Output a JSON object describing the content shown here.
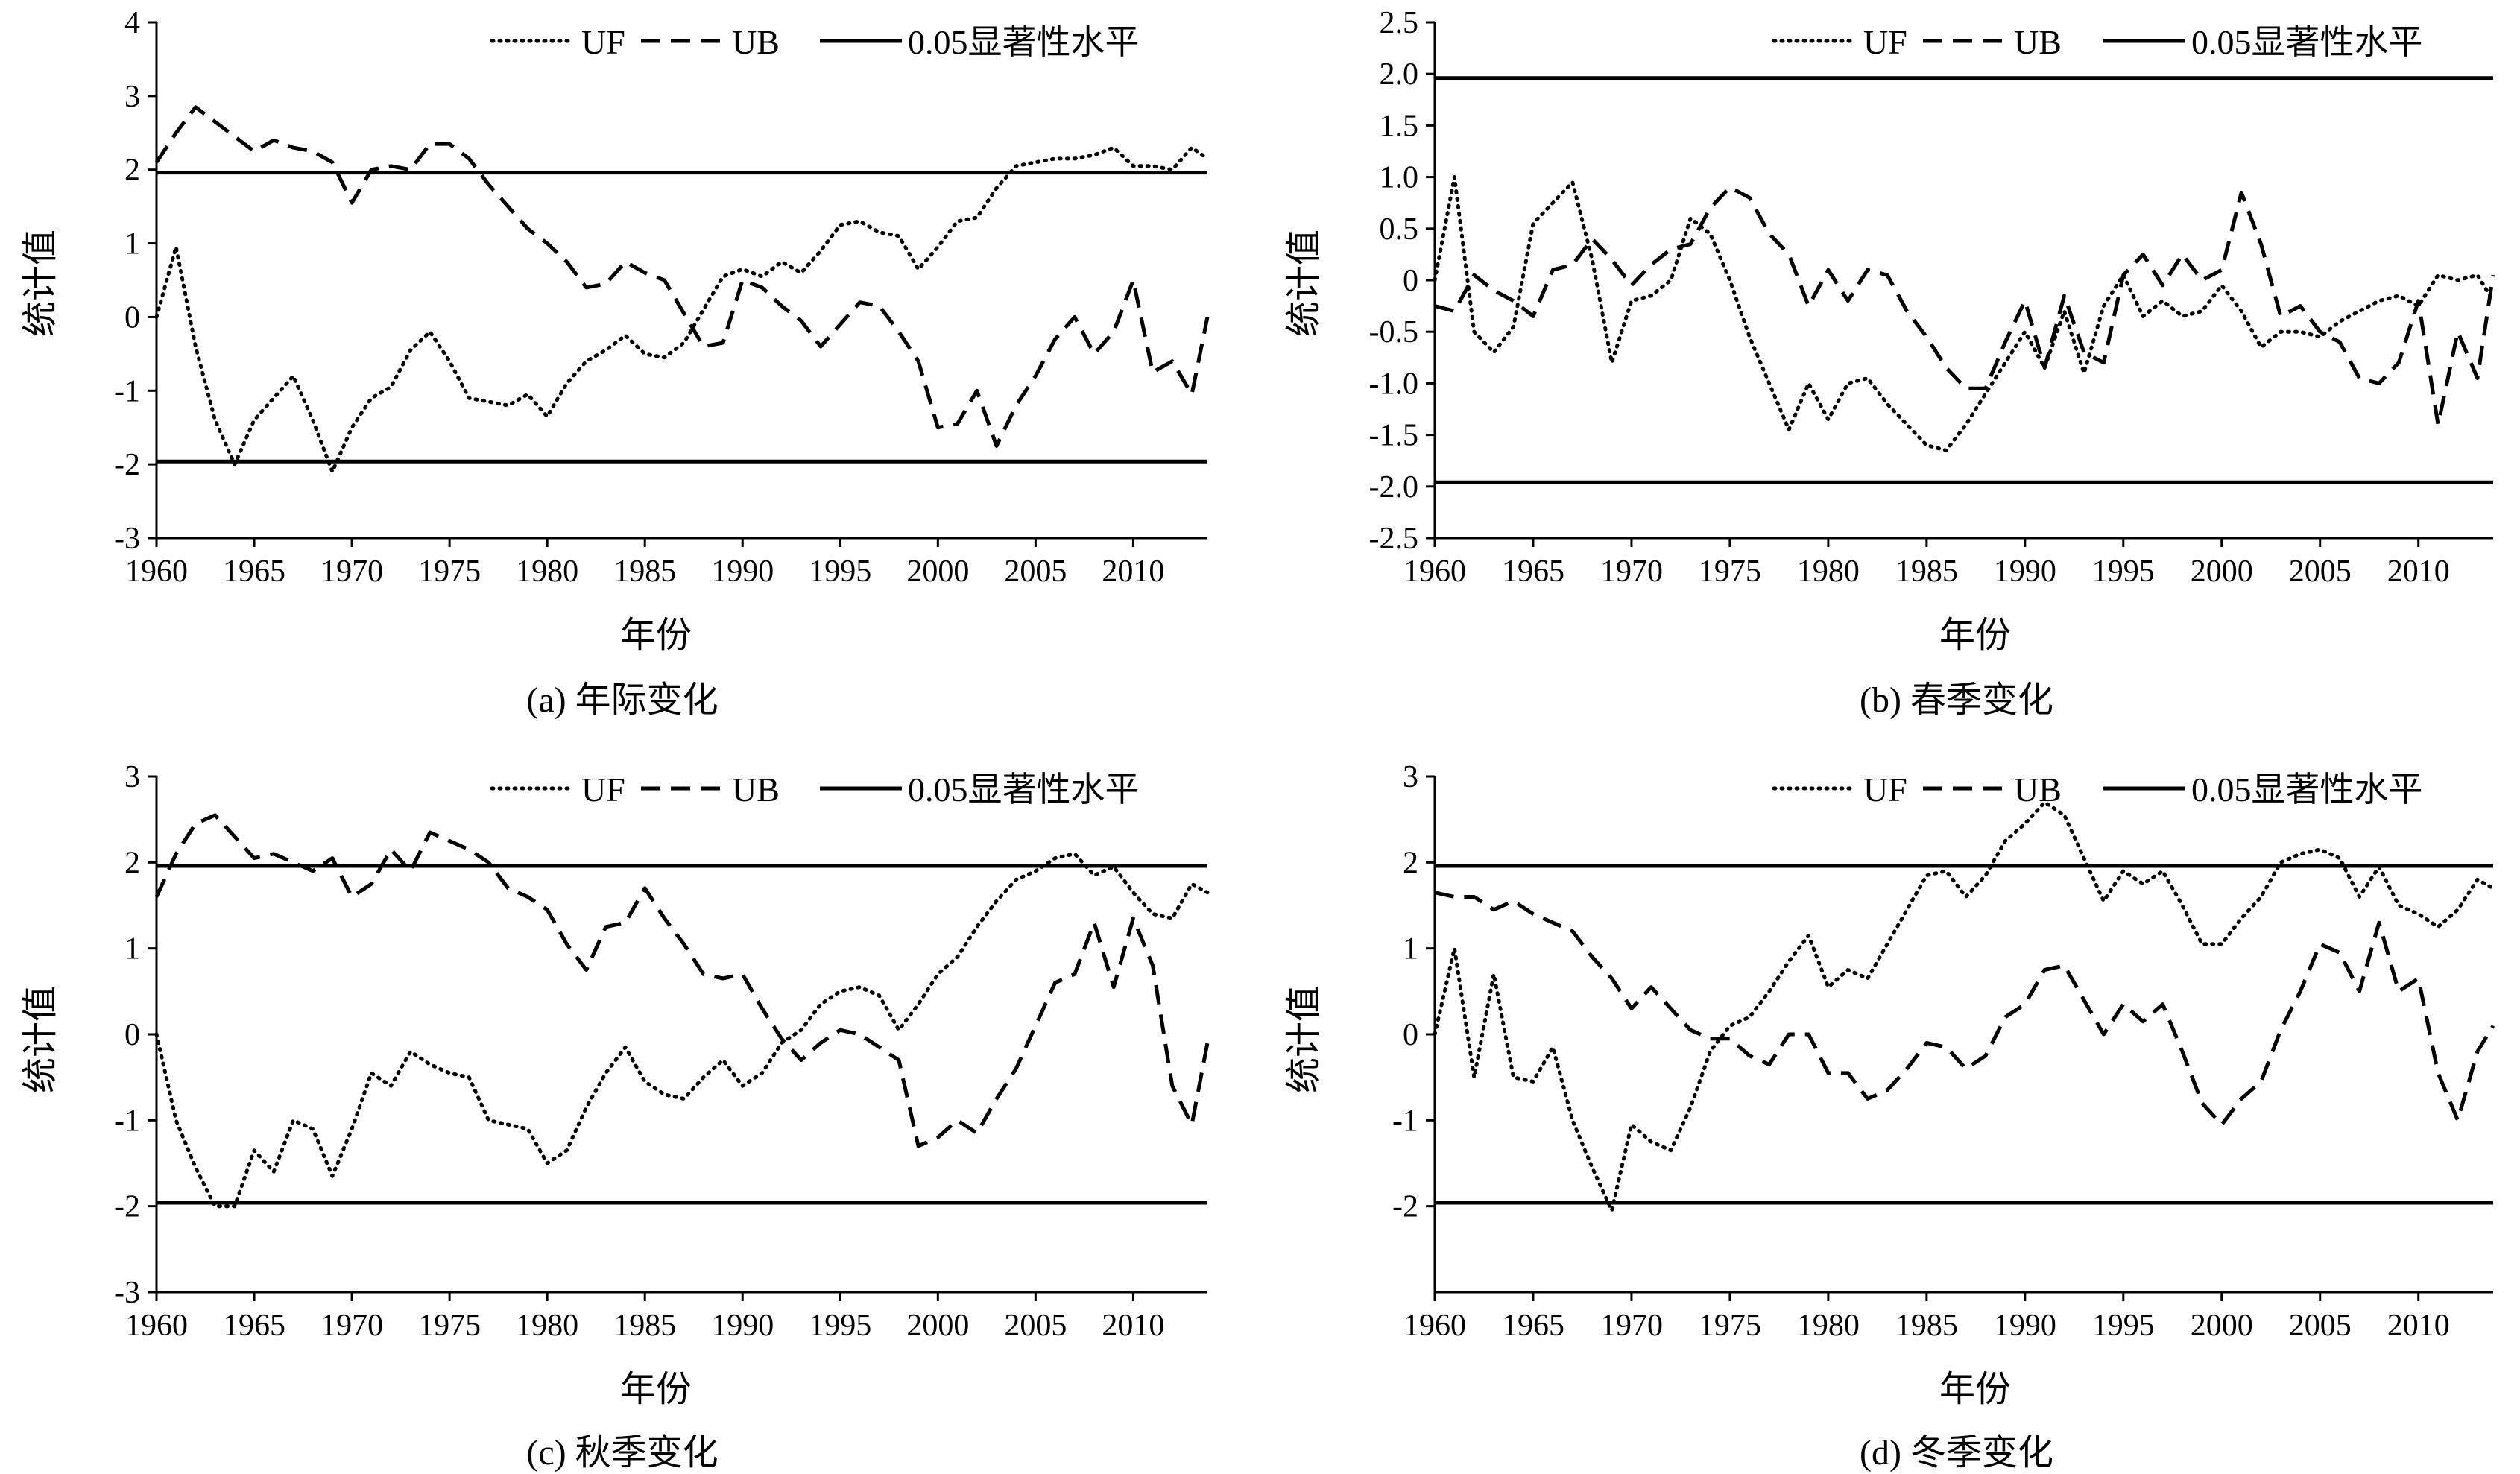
{
  "legend": {
    "uf": "UF",
    "ub": "UB",
    "sig": "0.05显著性水平"
  },
  "chart_data": [
    {
      "type": "line",
      "caption": "(a) 年际变化",
      "xlabel": "年份",
      "ylabel": "统计值",
      "xticks": [
        1960,
        1965,
        1970,
        1975,
        1980,
        1985,
        1990,
        1995,
        2000,
        2005,
        2010
      ],
      "yticks": [
        "4",
        "3",
        "2",
        "1",
        "0",
        "-1",
        "-2",
        "-3"
      ],
      "ylim": [
        -3,
        4
      ],
      "xlim": [
        1960,
        2013.8
      ],
      "sig": [
        1.96,
        -1.96
      ],
      "series": [
        {
          "name": "UF",
          "x": [
            1960,
            1961,
            1962,
            1963,
            1964,
            1965,
            1966,
            1967,
            1968,
            1969,
            1970,
            1971,
            1972,
            1973,
            1974,
            1975,
            1976,
            1977,
            1978,
            1979,
            1980,
            1981,
            1982,
            1983,
            1984,
            1985,
            1986,
            1987,
            1988,
            1989,
            1990,
            1991,
            1992,
            1993,
            1994,
            1995,
            1996,
            1997,
            1998,
            1999,
            2000,
            2001,
            2002,
            2003,
            2004,
            2005,
            2006,
            2007,
            2008,
            2009,
            2010,
            2011,
            2012,
            2013,
            2013.8
          ],
          "values": [
            0,
            0.95,
            -0.4,
            -1.4,
            -2.0,
            -1.4,
            -1.1,
            -0.8,
            -1.4,
            -2.1,
            -1.5,
            -1.1,
            -0.95,
            -0.45,
            -0.2,
            -0.6,
            -1.1,
            -1.15,
            -1.2,
            -1.05,
            -1.35,
            -0.9,
            -0.6,
            -0.45,
            -0.25,
            -0.5,
            -0.55,
            -0.35,
            0.1,
            0.55,
            0.65,
            0.55,
            0.75,
            0.6,
            0.9,
            1.25,
            1.3,
            1.15,
            1.1,
            0.65,
            0.95,
            1.3,
            1.35,
            1.75,
            2.05,
            2.1,
            2.15,
            2.15,
            2.2,
            2.3,
            2.05,
            2.05,
            2.0,
            2.3,
            2.15
          ]
        },
        {
          "name": "UB",
          "x": [
            1960,
            1961,
            1962,
            1963,
            1964,
            1965,
            1966,
            1967,
            1968,
            1969,
            1970,
            1971,
            1972,
            1973,
            1974,
            1975,
            1976,
            1977,
            1978,
            1979,
            1980,
            1981,
            1982,
            1983,
            1984,
            1985,
            1986,
            1987,
            1988,
            1989,
            1990,
            1991,
            1992,
            1993,
            1994,
            1995,
            1996,
            1997,
            1998,
            1999,
            2000,
            2001,
            2002,
            2003,
            2004,
            2005,
            2006,
            2007,
            2008,
            2009,
            2010,
            2011,
            2012,
            2013,
            2013.8
          ],
          "values": [
            2.1,
            2.5,
            2.85,
            2.65,
            2.45,
            2.25,
            2.4,
            2.3,
            2.25,
            2.1,
            1.55,
            2.0,
            2.05,
            2.0,
            2.35,
            2.35,
            2.15,
            1.8,
            1.5,
            1.2,
            1.0,
            0.75,
            0.4,
            0.45,
            0.75,
            0.6,
            0.5,
            0.05,
            -0.4,
            -0.35,
            0.5,
            0.4,
            0.15,
            -0.05,
            -0.4,
            -0.1,
            0.2,
            0.15,
            -0.2,
            -0.6,
            -1.5,
            -1.45,
            -1.0,
            -1.75,
            -1.2,
            -0.8,
            -0.3,
            0.0,
            -0.5,
            -0.2,
            0.5,
            -0.75,
            -0.6,
            -1.05,
            0.0
          ]
        }
      ]
    },
    {
      "type": "line",
      "caption": "(b) 春季变化",
      "xlabel": "年份",
      "ylabel": "统计值",
      "xticks": [
        1960,
        1965,
        1970,
        1975,
        1980,
        1985,
        1990,
        1995,
        2000,
        2005,
        2010
      ],
      "yticks": [
        "2.5",
        "2.0",
        "1.5",
        "1.0",
        "0.5",
        "0",
        "-0.5",
        "-1.0",
        "-1.5",
        "-2.0",
        "-2.5"
      ],
      "ylim": [
        -2.5,
        2.5
      ],
      "xlim": [
        1960,
        2013.8
      ],
      "sig": [
        1.96,
        -1.96
      ],
      "series": [
        {
          "name": "UF",
          "x": [
            1960,
            1961,
            1962,
            1963,
            1964,
            1965,
            1966,
            1967,
            1968,
            1969,
            1970,
            1971,
            1972,
            1973,
            1974,
            1975,
            1976,
            1977,
            1978,
            1979,
            1980,
            1981,
            1982,
            1983,
            1984,
            1985,
            1986,
            1987,
            1988,
            1989,
            1990,
            1991,
            1992,
            1993,
            1994,
            1995,
            1996,
            1997,
            1998,
            1999,
            2000,
            2001,
            2002,
            2003,
            2004,
            2005,
            2006,
            2007,
            2008,
            2009,
            2010,
            2011,
            2012,
            2013,
            2013.8
          ],
          "values": [
            0,
            1.0,
            -0.5,
            -0.7,
            -0.45,
            0.55,
            0.75,
            0.95,
            0.2,
            -0.8,
            -0.2,
            -0.15,
            0.0,
            0.6,
            0.45,
            0.0,
            -0.55,
            -1.0,
            -1.45,
            -1.0,
            -1.35,
            -1.0,
            -0.95,
            -1.2,
            -1.4,
            -1.6,
            -1.65,
            -1.4,
            -1.1,
            -0.8,
            -0.5,
            -0.85,
            -0.3,
            -0.9,
            -0.25,
            0.05,
            -0.35,
            -0.2,
            -0.35,
            -0.3,
            -0.05,
            -0.3,
            -0.65,
            -0.5,
            -0.5,
            -0.55,
            -0.4,
            -0.3,
            -0.2,
            -0.15,
            -0.25,
            0.05,
            0.0,
            0.05,
            -0.2
          ]
        },
        {
          "name": "UB",
          "x": [
            1960,
            1961,
            1962,
            1963,
            1964,
            1965,
            1966,
            1967,
            1968,
            1969,
            1970,
            1971,
            1972,
            1973,
            1974,
            1975,
            1976,
            1977,
            1978,
            1979,
            1980,
            1981,
            1982,
            1983,
            1984,
            1985,
            1986,
            1987,
            1988,
            1989,
            1990,
            1991,
            1992,
            1993,
            1994,
            1995,
            1996,
            1997,
            1998,
            1999,
            2000,
            2001,
            2002,
            2003,
            2004,
            2005,
            2006,
            2007,
            2008,
            2009,
            2010,
            2011,
            2012,
            2013,
            2013.8
          ],
          "values": [
            -0.25,
            -0.3,
            0.05,
            -0.1,
            -0.2,
            -0.35,
            0.1,
            0.15,
            0.4,
            0.2,
            -0.05,
            0.15,
            0.3,
            0.35,
            0.7,
            0.9,
            0.8,
            0.45,
            0.25,
            -0.25,
            0.1,
            -0.2,
            0.1,
            0.05,
            -0.3,
            -0.55,
            -0.85,
            -1.05,
            -1.05,
            -0.6,
            -0.2,
            -0.85,
            -0.15,
            -0.7,
            -0.8,
            0.05,
            0.25,
            -0.05,
            0.25,
            0.0,
            0.1,
            0.85,
            0.35,
            -0.35,
            -0.25,
            -0.5,
            -0.6,
            -0.95,
            -1.0,
            -0.8,
            -0.2,
            -1.4,
            -0.5,
            -0.95,
            0.05
          ]
        }
      ]
    },
    {
      "type": "line",
      "caption": "(c) 秋季变化",
      "xlabel": "年份",
      "ylabel": "统计值",
      "xticks": [
        1960,
        1965,
        1970,
        1975,
        1980,
        1985,
        1990,
        1995,
        2000,
        2005,
        2010
      ],
      "yticks": [
        "3",
        "2",
        "1",
        "0",
        "-1",
        "-2",
        "-3"
      ],
      "ylim": [
        -3,
        3
      ],
      "xlim": [
        1960,
        2013.8
      ],
      "sig": [
        1.96,
        -1.96
      ],
      "series": [
        {
          "name": "UF",
          "x": [
            1960,
            1961,
            1962,
            1963,
            1964,
            1965,
            1966,
            1967,
            1968,
            1969,
            1970,
            1971,
            1972,
            1973,
            1974,
            1975,
            1976,
            1977,
            1978,
            1979,
            1980,
            1981,
            1982,
            1983,
            1984,
            1985,
            1986,
            1987,
            1988,
            1989,
            1990,
            1991,
            1992,
            1993,
            1994,
            1995,
            1996,
            1997,
            1998,
            1999,
            2000,
            2001,
            2002,
            2003,
            2004,
            2005,
            2006,
            2007,
            2008,
            2009,
            2010,
            2011,
            2012,
            2013,
            2013.8
          ],
          "values": [
            0,
            -1.0,
            -1.55,
            -2.0,
            -2.0,
            -1.35,
            -1.6,
            -1.0,
            -1.1,
            -1.65,
            -1.1,
            -0.45,
            -0.6,
            -0.2,
            -0.35,
            -0.45,
            -0.5,
            -1.0,
            -1.05,
            -1.1,
            -1.5,
            -1.35,
            -0.85,
            -0.45,
            -0.15,
            -0.55,
            -0.7,
            -0.75,
            -0.5,
            -0.3,
            -0.6,
            -0.45,
            -0.1,
            0.05,
            0.35,
            0.5,
            0.55,
            0.45,
            0.05,
            0.35,
            0.7,
            0.9,
            1.25,
            1.55,
            1.8,
            1.9,
            2.05,
            2.1,
            1.85,
            1.95,
            1.65,
            1.4,
            1.35,
            1.75,
            1.65
          ]
        },
        {
          "name": "UB",
          "x": [
            1960,
            1961,
            1962,
            1963,
            1964,
            1965,
            1966,
            1967,
            1968,
            1969,
            1970,
            1971,
            1972,
            1973,
            1974,
            1975,
            1976,
            1977,
            1978,
            1979,
            1980,
            1981,
            1982,
            1983,
            1984,
            1985,
            1986,
            1987,
            1988,
            1989,
            1990,
            1991,
            1992,
            1993,
            1994,
            1995,
            1996,
            1997,
            1998,
            1999,
            2000,
            2001,
            2002,
            2003,
            2004,
            2005,
            2006,
            2007,
            2008,
            2009,
            2010,
            2011,
            2012,
            2013,
            2013.8
          ],
          "values": [
            1.6,
            2.1,
            2.45,
            2.55,
            2.3,
            2.05,
            2.1,
            2.0,
            1.9,
            2.05,
            1.6,
            1.75,
            2.15,
            1.9,
            2.35,
            2.25,
            2.15,
            2.0,
            1.7,
            1.6,
            1.45,
            1.05,
            0.75,
            1.25,
            1.3,
            1.7,
            1.35,
            1.05,
            0.7,
            0.65,
            0.7,
            0.3,
            -0.05,
            -0.3,
            -0.1,
            0.05,
            0.0,
            -0.15,
            -0.3,
            -1.3,
            -1.2,
            -1.0,
            -1.15,
            -0.75,
            -0.4,
            0.1,
            0.6,
            0.7,
            1.3,
            0.55,
            1.35,
            0.8,
            -0.6,
            -1.05,
            -0.1
          ]
        }
      ]
    },
    {
      "type": "line",
      "caption": "(d) 冬季变化",
      "xlabel": "年份",
      "ylabel": "统计值",
      "xticks": [
        1960,
        1965,
        1970,
        1975,
        1980,
        1985,
        1990,
        1995,
        2000,
        2005,
        2010
      ],
      "yticks": [
        "3",
        "2",
        "1",
        "0",
        "-1",
        "-2"
      ],
      "ylim": [
        -3,
        3
      ],
      "xlim": [
        1960,
        2013.8
      ],
      "sig": [
        1.96,
        -1.96
      ],
      "series": [
        {
          "name": "UF",
          "x": [
            1960,
            1961,
            1962,
            1963,
            1964,
            1965,
            1966,
            1967,
            1968,
            1969,
            1970,
            1971,
            1972,
            1973,
            1974,
            1975,
            1976,
            1977,
            1978,
            1979,
            1980,
            1981,
            1982,
            1983,
            1984,
            1985,
            1986,
            1987,
            1988,
            1989,
            1990,
            1991,
            1992,
            1993,
            1994,
            1995,
            1996,
            1997,
            1998,
            1999,
            2000,
            2001,
            2002,
            2003,
            2004,
            2005,
            2006,
            2007,
            2008,
            2009,
            2010,
            2011,
            2012,
            2013,
            2013.8
          ],
          "values": [
            0,
            1.0,
            -0.5,
            0.7,
            -0.5,
            -0.55,
            -0.15,
            -1.0,
            -1.55,
            -2.05,
            -1.05,
            -1.25,
            -1.35,
            -0.85,
            -0.2,
            0.1,
            0.2,
            0.5,
            0.85,
            1.15,
            0.55,
            0.75,
            0.65,
            1.05,
            1.45,
            1.85,
            1.9,
            1.6,
            1.85,
            2.25,
            2.45,
            2.7,
            2.55,
            2.05,
            1.55,
            1.9,
            1.75,
            1.9,
            1.5,
            1.05,
            1.05,
            1.35,
            1.6,
            2.0,
            2.1,
            2.15,
            2.05,
            1.6,
            1.95,
            1.5,
            1.4,
            1.25,
            1.45,
            1.8,
            1.7
          ]
        },
        {
          "name": "UB",
          "x": [
            1960,
            1961,
            1962,
            1963,
            1964,
            1965,
            1966,
            1967,
            1968,
            1969,
            1970,
            1971,
            1972,
            1973,
            1974,
            1975,
            1976,
            1977,
            1978,
            1979,
            1980,
            1981,
            1982,
            1983,
            1984,
            1985,
            1986,
            1987,
            1988,
            1989,
            1990,
            1991,
            1992,
            1993,
            1994,
            1995,
            1996,
            1997,
            1998,
            1999,
            2000,
            2001,
            2002,
            2003,
            2004,
            2005,
            2006,
            2007,
            2008,
            2009,
            2010,
            2011,
            2012,
            2013,
            2013.8
          ],
          "values": [
            1.65,
            1.6,
            1.6,
            1.45,
            1.55,
            1.4,
            1.3,
            1.2,
            0.9,
            0.65,
            0.3,
            0.55,
            0.3,
            0.05,
            -0.05,
            -0.05,
            -0.25,
            -0.35,
            0.0,
            0.0,
            -0.45,
            -0.45,
            -0.75,
            -0.65,
            -0.4,
            -0.1,
            -0.15,
            -0.4,
            -0.25,
            0.2,
            0.35,
            0.75,
            0.8,
            0.4,
            0.0,
            0.35,
            0.15,
            0.35,
            -0.2,
            -0.8,
            -1.05,
            -0.75,
            -0.55,
            0.05,
            0.5,
            1.05,
            0.95,
            0.5,
            1.3,
            0.5,
            0.65,
            -0.45,
            -1.0,
            -0.2,
            0.1
          ]
        }
      ]
    }
  ]
}
